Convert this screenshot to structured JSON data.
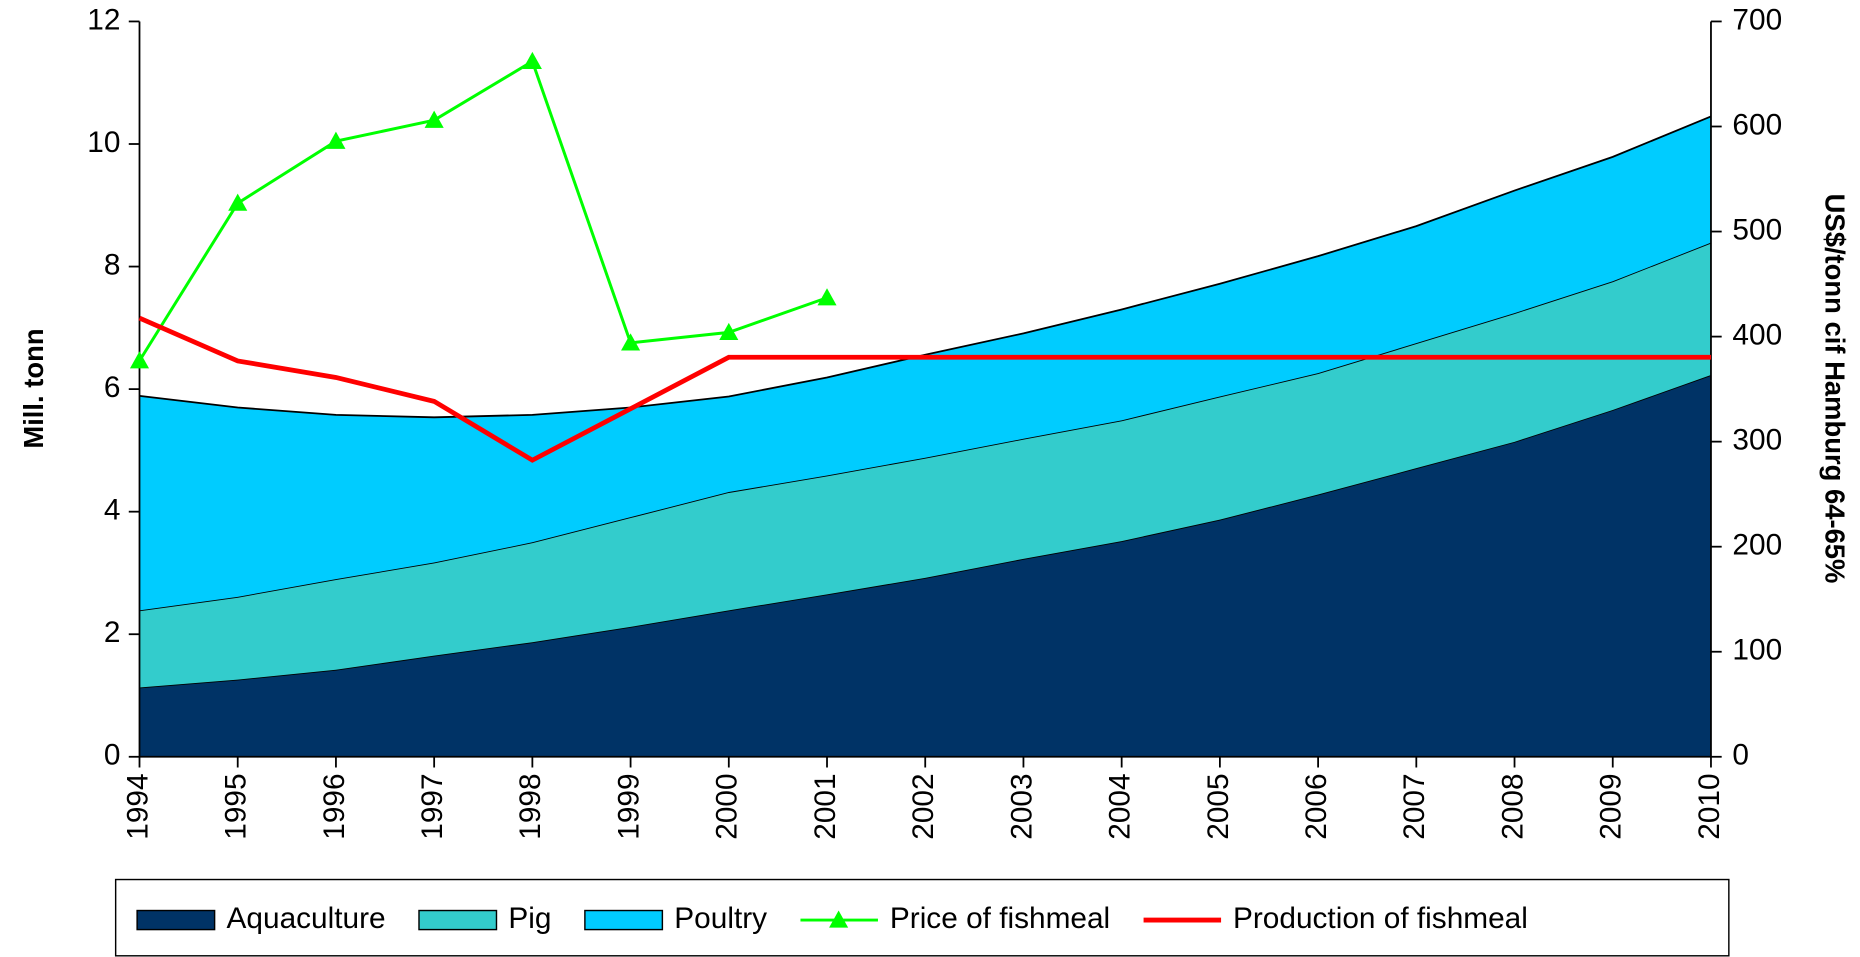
{
  "chart_data": {
    "type": "area",
    "categories": [
      "1994",
      "1995",
      "1996",
      "1997",
      "1998",
      "1999",
      "2000",
      "2001",
      "2002",
      "2003",
      "2004",
      "2005",
      "2006",
      "2007",
      "2008",
      "2009",
      "2010"
    ],
    "ylabel": "Mill. tonn",
    "y2label": "US$/tonn cif Hamburg 64-65%",
    "ylim": [
      0,
      12
    ],
    "yticks": [
      0,
      2,
      4,
      6,
      8,
      10,
      12
    ],
    "y2lim": [
      0,
      700
    ],
    "y2ticks": [
      0,
      100,
      200,
      300,
      400,
      500,
      600,
      700
    ],
    "stacked": true,
    "series": [
      {
        "name": "Aquaculture",
        "type": "area",
        "color": "#003366",
        "values": [
          1.13,
          1.26,
          1.42,
          1.65,
          1.87,
          2.12,
          2.39,
          2.65,
          2.92,
          3.23,
          3.52,
          3.87,
          4.28,
          4.71,
          5.14,
          5.66,
          6.23
        ]
      },
      {
        "name": "Pig",
        "type": "area",
        "color": "#33CCCC",
        "values": [
          1.26,
          1.35,
          1.48,
          1.52,
          1.63,
          1.79,
          1.93,
          1.94,
          1.96,
          1.96,
          1.97,
          2.01,
          1.98,
          2.04,
          2.1,
          2.1,
          2.16
        ]
      },
      {
        "name": "Poultry",
        "type": "area",
        "color": "#00CCFF",
        "values": [
          3.5,
          3.09,
          2.68,
          2.37,
          2.08,
          1.79,
          1.56,
          1.6,
          1.68,
          1.72,
          1.81,
          1.84,
          1.91,
          1.91,
          2.0,
          2.03,
          2.06
        ]
      },
      {
        "name": "Price of fishmeal",
        "type": "line",
        "marker": "triangle",
        "axis": "y2",
        "color": "#00FF00",
        "values": [
          377,
          527,
          586,
          606,
          662,
          394,
          404,
          437,
          null,
          null,
          null,
          null,
          null,
          null,
          null,
          null,
          null
        ]
      },
      {
        "name": "Production of fishmeal",
        "type": "line",
        "color": "#FF0000",
        "values": [
          7.16,
          6.46,
          6.19,
          5.8,
          4.84,
          5.68,
          6.52,
          6.52,
          6.52,
          6.52,
          6.52,
          6.52,
          6.52,
          6.52,
          6.52,
          6.52,
          6.52
        ]
      }
    ]
  }
}
